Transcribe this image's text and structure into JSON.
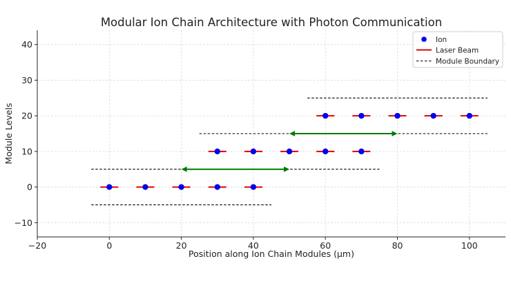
{
  "chart_data": {
    "type": "scatter",
    "title": "Modular Ion Chain Architecture with Photon Communication",
    "xlabel": "Position along Ion Chain Modules (μm)",
    "ylabel": "Module Levels",
    "xlim": [
      -20,
      110
    ],
    "ylim": [
      -14,
      44
    ],
    "xticks": [
      -20,
      0,
      20,
      40,
      60,
      80,
      100
    ],
    "yticks": [
      -10,
      0,
      10,
      20,
      30,
      40
    ],
    "xtick_labels": [
      "−20",
      "0",
      "20",
      "40",
      "60",
      "80",
      "100"
    ],
    "ytick_labels": [
      "−10",
      "0",
      "10",
      "20",
      "30",
      "40"
    ],
    "grid": true,
    "legend_position": "top-right",
    "legend": [
      {
        "label": "Ion",
        "kind": "marker"
      },
      {
        "label": "Laser Beam",
        "kind": "line"
      },
      {
        "label": "Module Boundary",
        "kind": "dashed"
      }
    ],
    "ions": [
      {
        "module": 0,
        "level": 0,
        "x": [
          0,
          10,
          20,
          30,
          40
        ]
      },
      {
        "module": 1,
        "level": 10,
        "x": [
          30,
          40,
          50,
          60,
          70
        ]
      },
      {
        "module": 2,
        "level": 20,
        "x": [
          60,
          70,
          80,
          90,
          100
        ]
      }
    ],
    "laser_half_width": 2.5,
    "module_boundaries": [
      {
        "y": -5,
        "x": [
          -5,
          45
        ]
      },
      {
        "y": 5,
        "x": [
          -5,
          75
        ]
      },
      {
        "y": 15,
        "x": [
          25,
          105
        ]
      },
      {
        "y": 25,
        "x": [
          55,
          105
        ]
      }
    ],
    "photon_links": [
      {
        "y": 5,
        "x": [
          20,
          50
        ]
      },
      {
        "y": 15,
        "x": [
          50,
          80
        ]
      }
    ],
    "colors": {
      "ion": "#0000ee",
      "laser": "#dd0000",
      "boundary": "#000000",
      "photon": "#007a00",
      "grid": "#d6d6d6"
    }
  }
}
